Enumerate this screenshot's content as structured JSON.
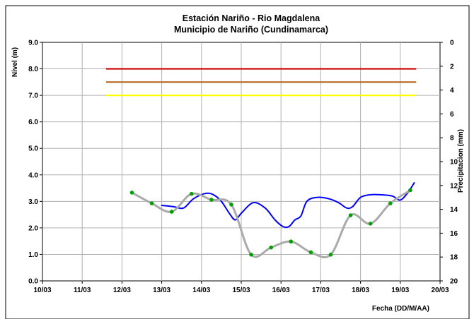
{
  "chart_data": {
    "type": "line",
    "title": "Estación Nariño  - Rio Magdalena",
    "subtitle": "Municipio de Nariño (Cundinamarca)",
    "xlabel": "Fecha (DD/M/AA)",
    "ylabel": "Nivel (m)",
    "y2label": "Precipitacion (mm)",
    "categories": [
      "10/03",
      "11/03",
      "12/03",
      "13/03",
      "14/03",
      "15/03",
      "16/03",
      "17/03",
      "18/03",
      "19/03",
      "20/03"
    ],
    "ylim": [
      0,
      9
    ],
    "yticks": [
      "0.0",
      "1.0",
      "2.0",
      "3.0",
      "4.0",
      "5.0",
      "6.0",
      "7.0",
      "8.0",
      "9.0"
    ],
    "y2lim": [
      0,
      20
    ],
    "y2ticks": [
      "0",
      "2",
      "4",
      "6",
      "8",
      "10",
      "12",
      "14",
      "16",
      "18",
      "20"
    ],
    "grid": true,
    "reference_lines": [
      {
        "value": 8.0,
        "color": "#cc0000"
      },
      {
        "value": 7.5,
        "color": "#b5651d"
      },
      {
        "value": 7.0,
        "color": "#ffff00"
      }
    ],
    "reference_x_range": [
      11.6,
      19.4
    ],
    "series": [
      {
        "color": "#0000ff",
        "axis": "left",
        "x": [
          13.0,
          13.3,
          13.55,
          13.8,
          14.1,
          14.3,
          14.5,
          14.7,
          14.85,
          15.0,
          15.3,
          15.6,
          15.85,
          16.05,
          16.2,
          16.35,
          16.5,
          16.65,
          16.9,
          17.2,
          17.45,
          17.65,
          17.8,
          18.0,
          18.25,
          18.5,
          18.8,
          19.0,
          19.2,
          19.35
        ],
        "y": [
          2.85,
          2.8,
          2.75,
          3.1,
          3.3,
          3.25,
          3.0,
          2.55,
          2.3,
          2.55,
          2.95,
          2.75,
          2.3,
          2.05,
          2.05,
          2.3,
          2.45,
          3.0,
          3.15,
          3.1,
          2.95,
          2.75,
          2.8,
          3.15,
          3.25,
          3.25,
          3.2,
          3.05,
          3.35,
          3.7
        ]
      },
      {
        "color": "#aaaaaa",
        "axis": "right",
        "marker_color": "#00a000",
        "x": [
          12.25,
          12.75,
          13.25,
          13.75,
          14.25,
          14.75,
          15.25,
          15.75,
          16.25,
          16.75,
          17.25,
          17.75,
          18.25,
          18.75,
          19.25
        ],
        "y": [
          12.6,
          13.5,
          14.2,
          12.7,
          13.2,
          13.6,
          17.8,
          17.2,
          16.7,
          17.6,
          17.8,
          14.5,
          15.2,
          13.5,
          12.4
        ]
      }
    ]
  }
}
